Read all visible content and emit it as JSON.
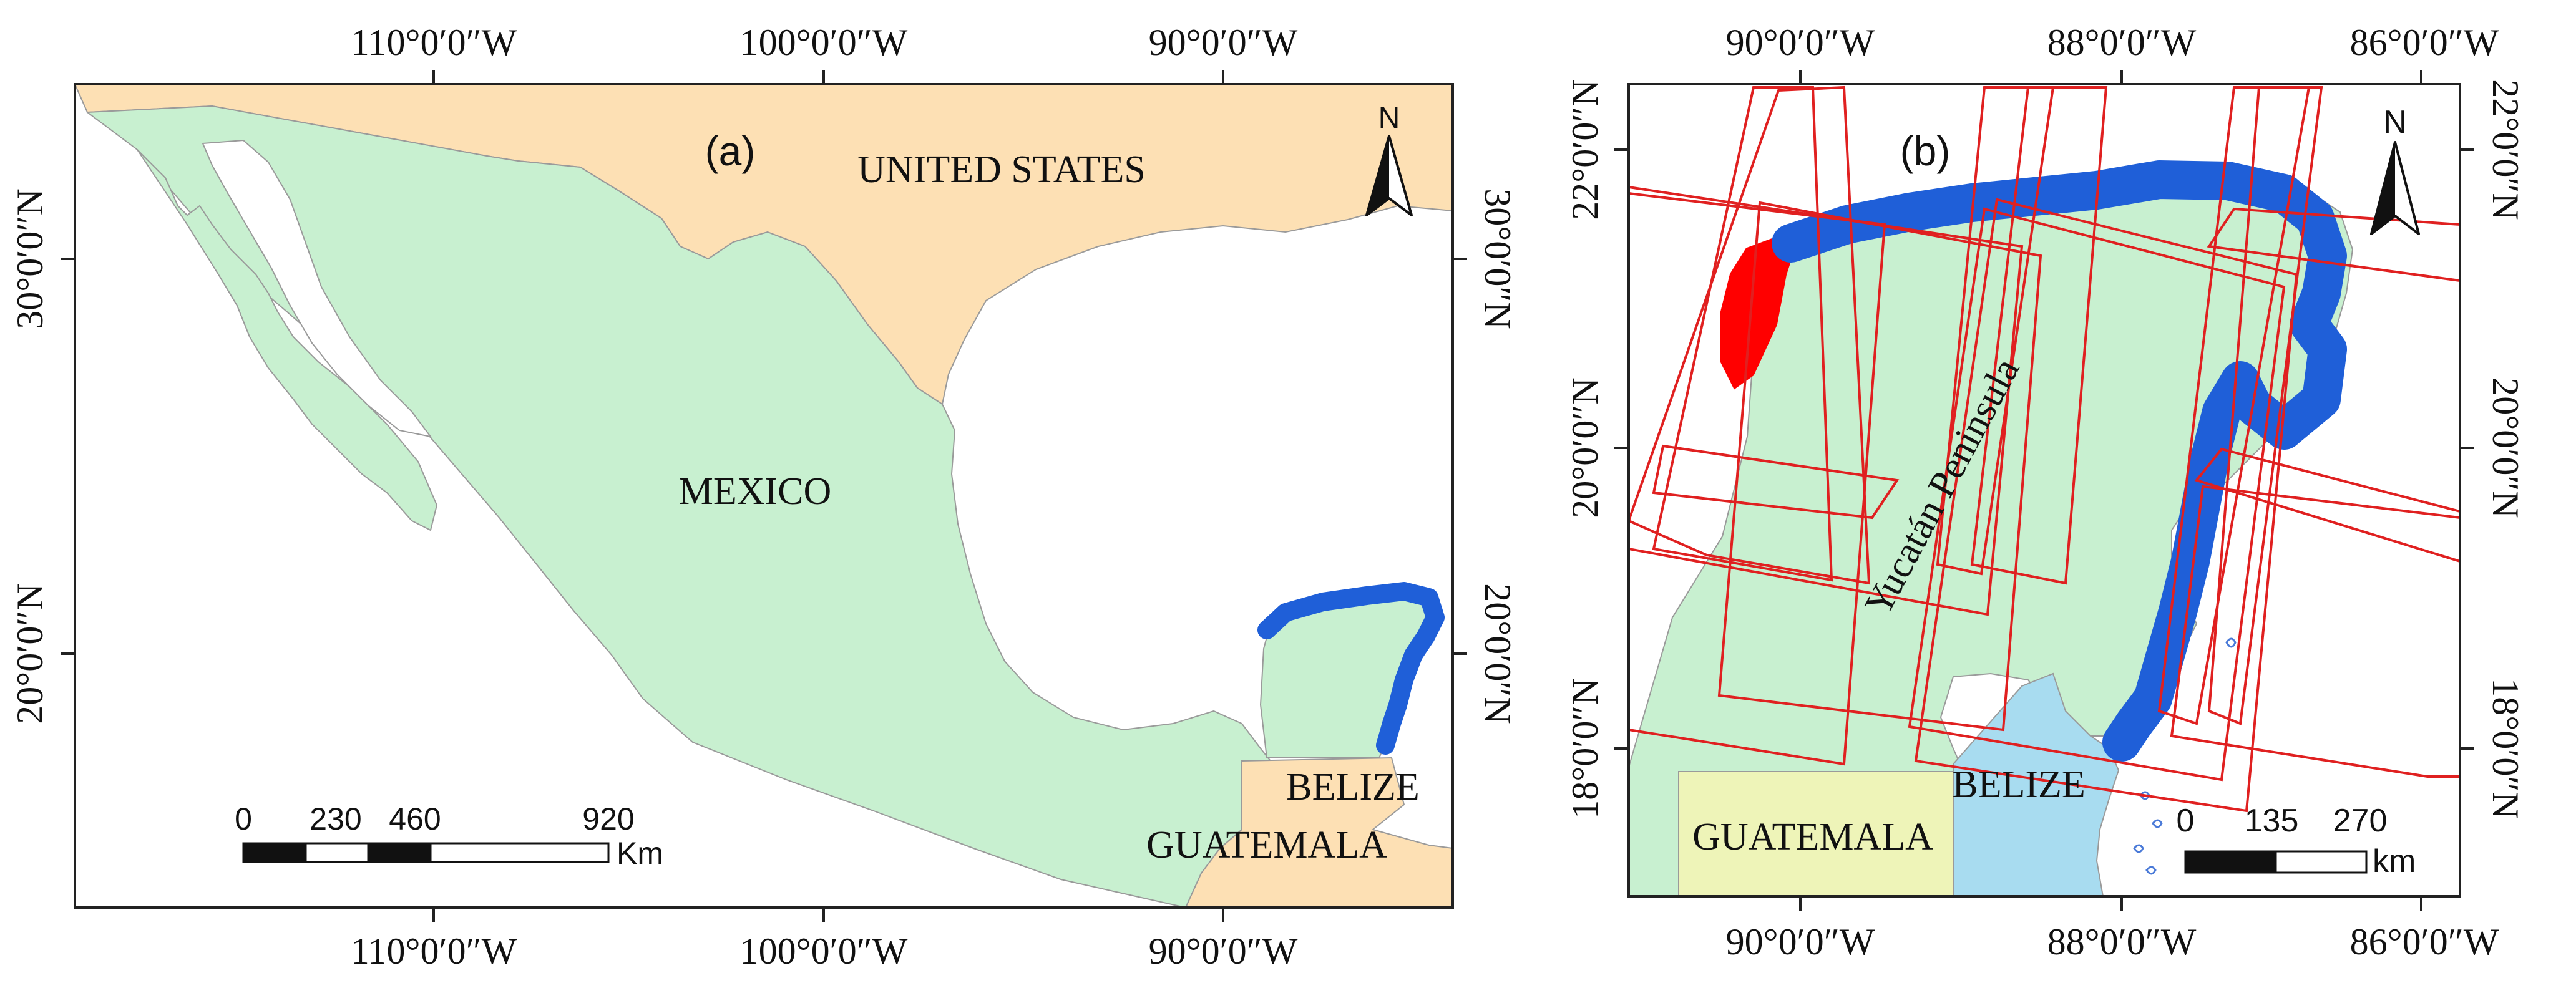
{
  "panels": {
    "a": {
      "label": "(a)",
      "lon_ticks": [
        "110°0′0″W",
        "100°0′0″W",
        "90°0′0″W"
      ],
      "lat_ticks": [
        "30°0′0″N",
        "20°0′0″N"
      ],
      "countries": {
        "usa": "UNITED STATES",
        "mexico": "MEXICO",
        "belize": "BELIZE",
        "guatemala": "GUATEMALA"
      },
      "north": "N",
      "scale": {
        "labels": [
          "0",
          "230",
          "460",
          "920"
        ],
        "unit": "Km"
      }
    },
    "b": {
      "label": "(b)",
      "lon_ticks": [
        "90°0′0″W",
        "88°0′0″W",
        "86°0′0″W"
      ],
      "lat_ticks": [
        "22°0′0″N",
        "20°0′0″N",
        "18°0′0″N"
      ],
      "region": "Yucatán Peninsula",
      "countries": {
        "belize": "BELIZE",
        "guatemala": "GUATEMALA"
      },
      "north": "N",
      "scale": {
        "labels": [
          "0",
          "135",
          "270"
        ],
        "unit": "km"
      }
    }
  },
  "colors": {
    "land_mexico": "#c8f0d0",
    "land_usa": "#fde0b4",
    "land_guatemala": "#eef4b8",
    "land_belize": "#a8dcf0",
    "coast_buffer": "#1f5fd8",
    "highlight_segment": "#ff0000",
    "scene_frames": "#e02020"
  }
}
